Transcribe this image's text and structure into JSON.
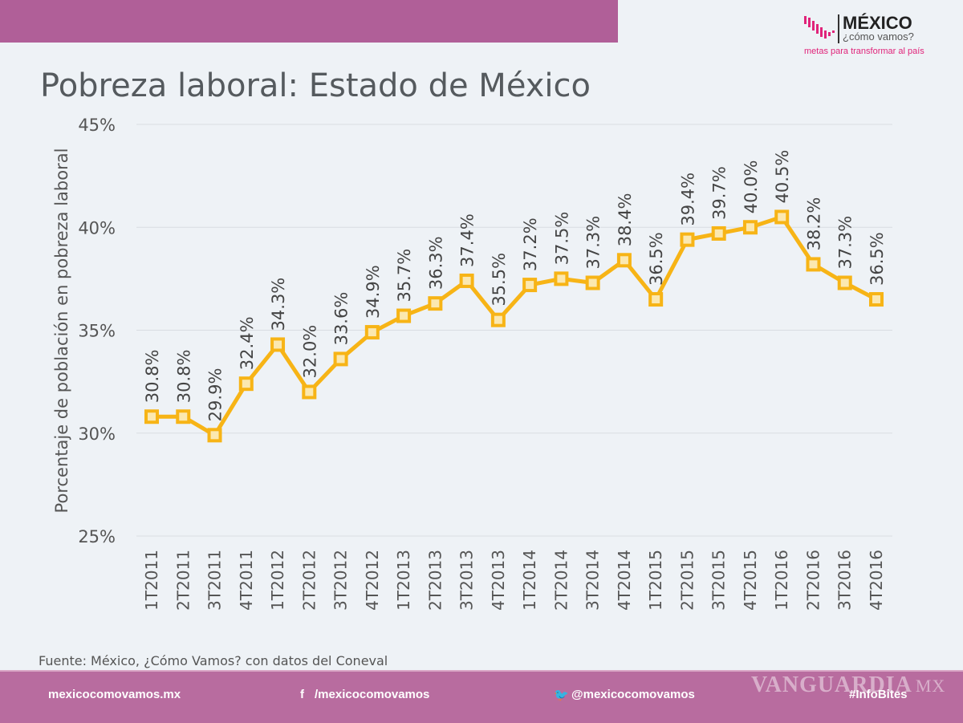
{
  "header": {
    "logo_title": "MÉXICO",
    "logo_sub": "¿cómo vamos?",
    "logo_tagline": "metas para transformar al país"
  },
  "title": "Pobreza laboral: Estado de México",
  "chart_data": {
    "type": "line",
    "title": "Pobreza laboral: Estado de México",
    "ylabel": "Porcentaje de población en pobreza laboral",
    "xlabel": "",
    "ylim": [
      25,
      45
    ],
    "yticks": [
      "25%",
      "30%",
      "35%",
      "40%",
      "45%"
    ],
    "ytick_values": [
      25,
      30,
      35,
      40,
      45
    ],
    "grid": true,
    "color": "#f7b416",
    "categories": [
      "1T2011",
      "2T2011",
      "3T2011",
      "4T2011",
      "1T2012",
      "2T2012",
      "3T2012",
      "4T2012",
      "1T2013",
      "2T2013",
      "3T2013",
      "4T2013",
      "1T2014",
      "2T2014",
      "3T2014",
      "4T2014",
      "1T2015",
      "2T2015",
      "3T2015",
      "4T2015",
      "1T2016",
      "2T2016",
      "3T2016",
      "4T2016"
    ],
    "values": [
      30.8,
      30.8,
      29.9,
      32.4,
      34.3,
      32.0,
      33.6,
      34.9,
      35.7,
      36.3,
      37.4,
      35.5,
      37.2,
      37.5,
      37.3,
      38.4,
      36.5,
      39.4,
      39.7,
      40.0,
      40.5,
      38.2,
      37.3,
      36.5
    ],
    "data_labels": [
      "30.8%",
      "30.8%",
      "29.9%",
      "32.4%",
      "34.3%",
      "32.0%",
      "33.6%",
      "34.9%",
      "35.7%",
      "36.3%",
      "37.4%",
      "35.5%",
      "37.2%",
      "37.5%",
      "37.3%",
      "38.4%",
      "36.5%",
      "39.4%",
      "39.7%",
      "40.0%",
      "40.5%",
      "38.2%",
      "37.3%",
      "36.5%"
    ]
  },
  "source": "Fuente: México, ¿Cómo Vamos? con datos del Coneval",
  "footer": {
    "site": "mexicocomovamos.mx",
    "facebook": "/mexicocomovamos",
    "twitter": "@mexicocomovamos",
    "hashtag": "#InfoBites",
    "watermark": "VANGUARDIA",
    "watermark_suffix": "MX"
  }
}
